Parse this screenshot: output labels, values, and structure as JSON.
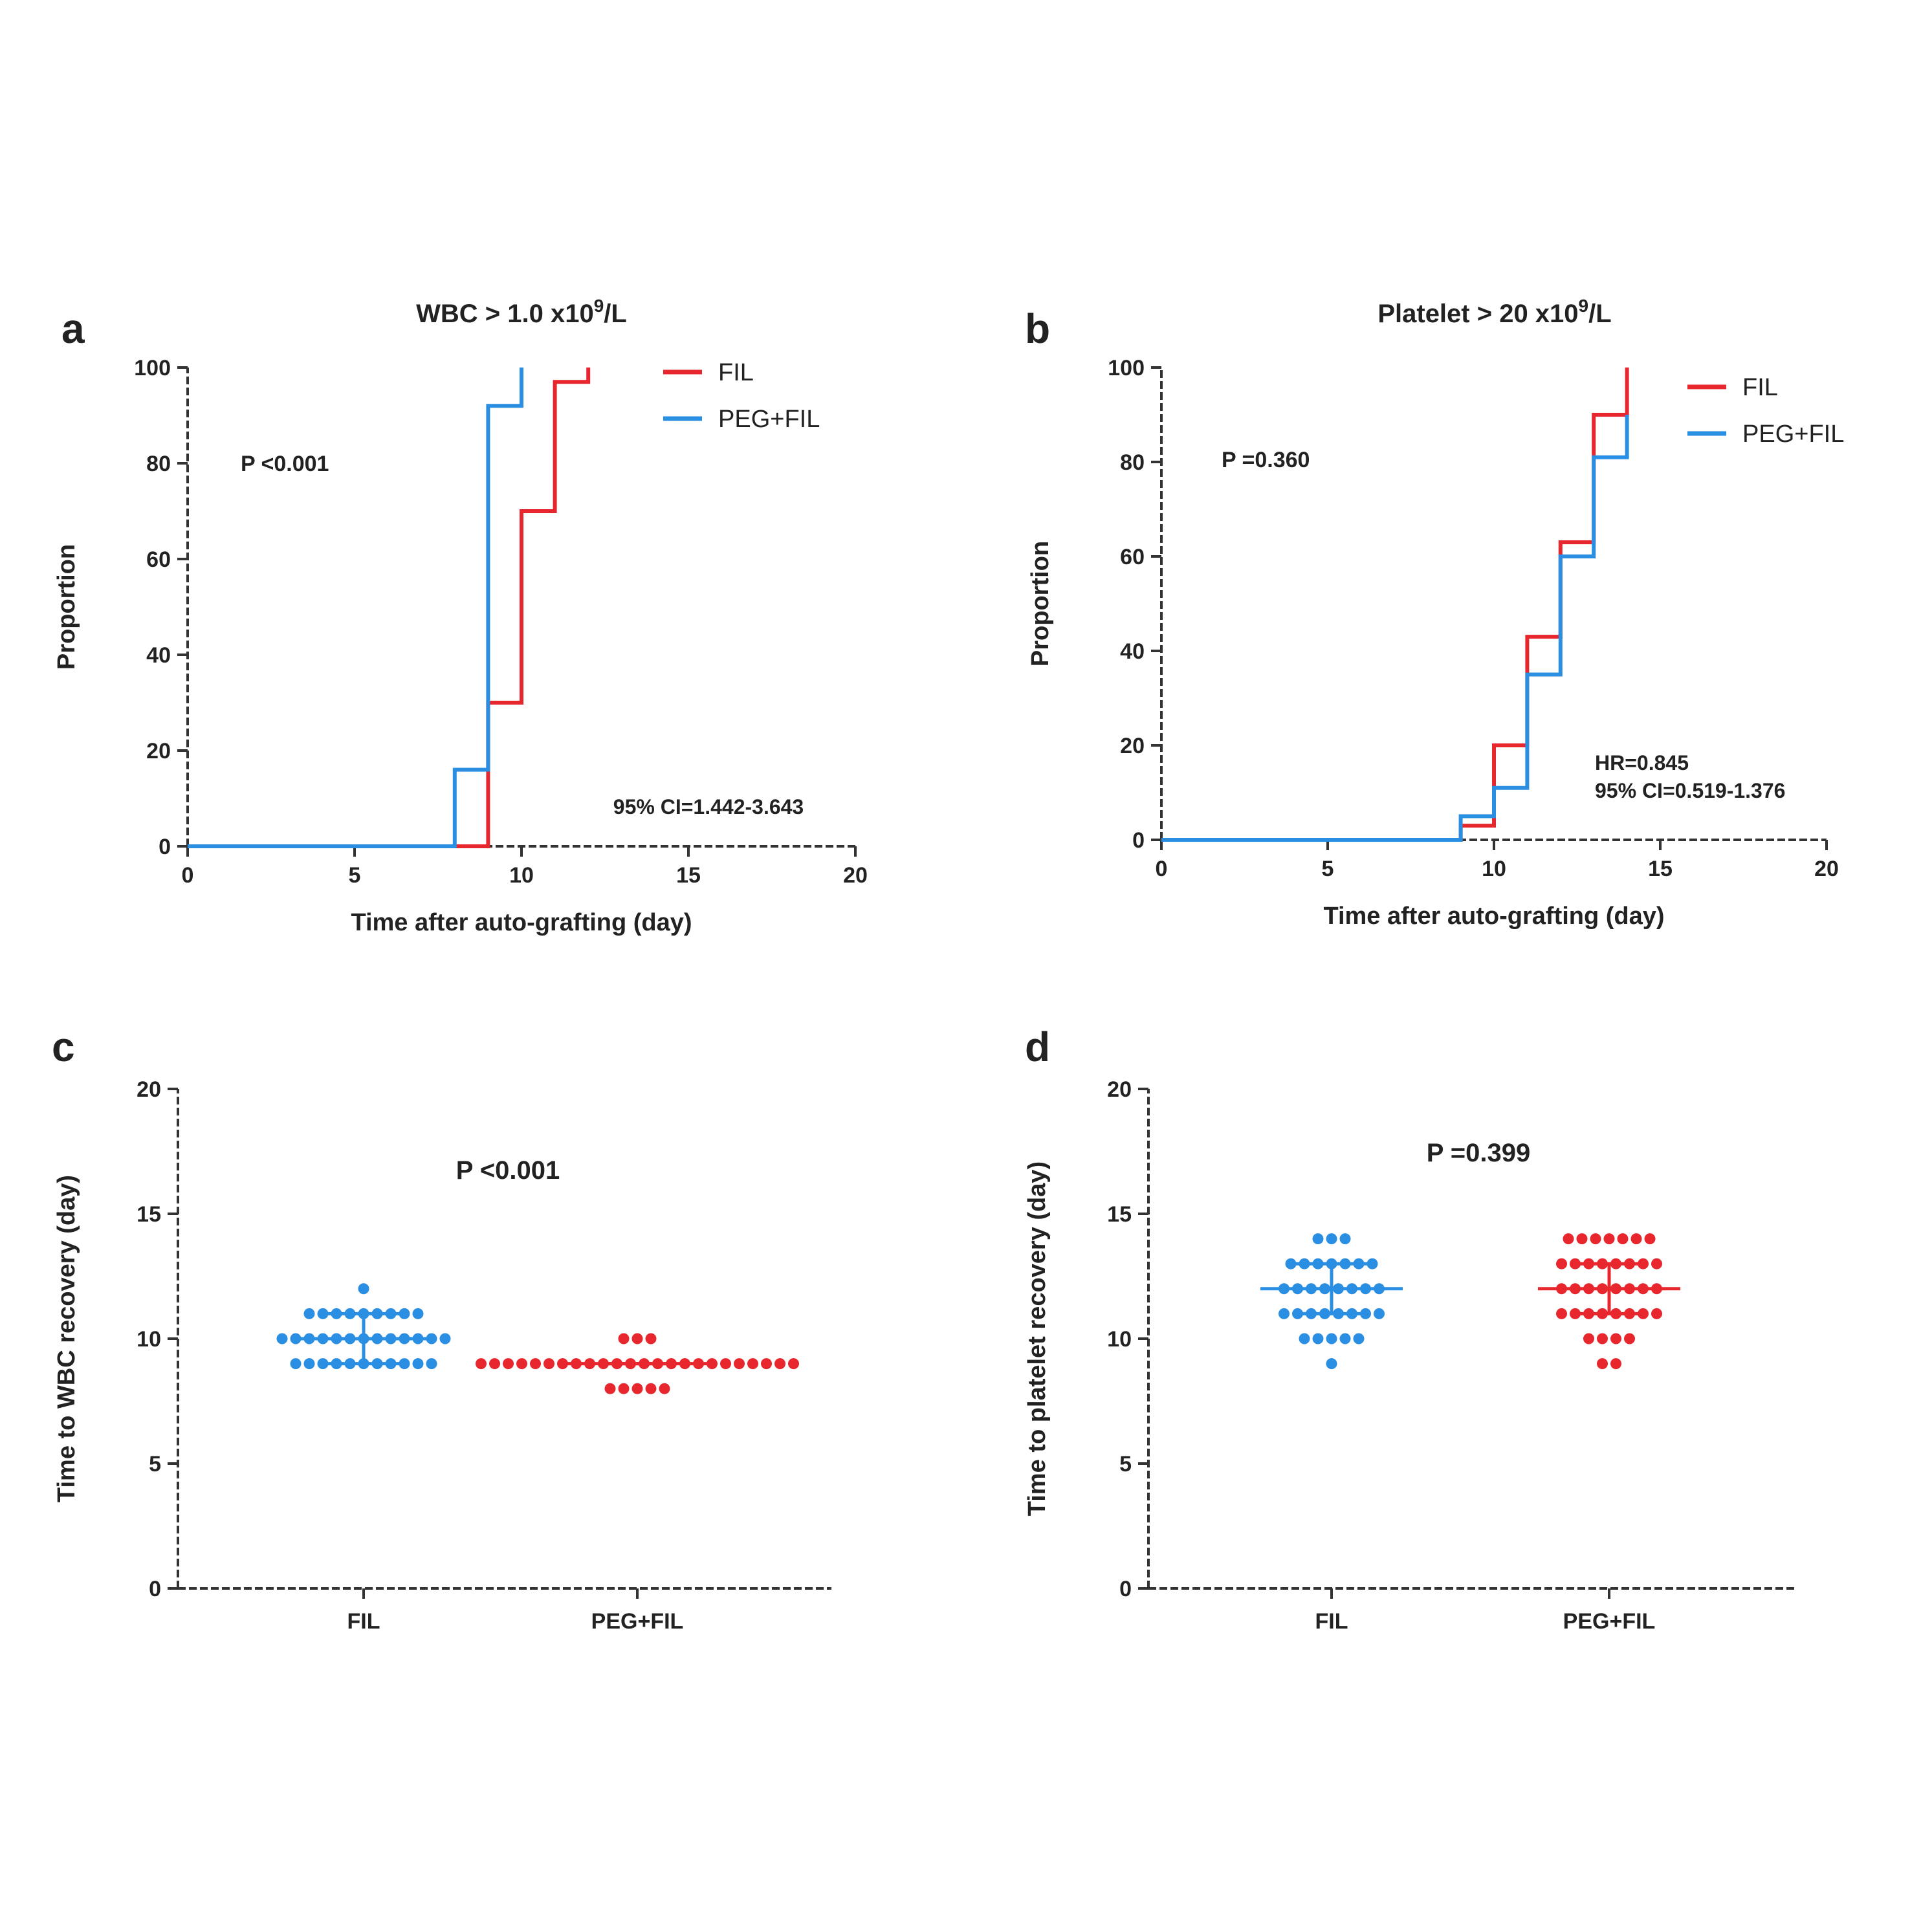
{
  "chart_data": [
    {
      "panel": "a",
      "type": "line",
      "step": true,
      "title": "WBC > 1.0 x10",
      "title_sup": "9",
      "title_tail": "/L",
      "xlabel": "Time after auto-grafting (day)",
      "ylabel": "Proportion",
      "xlim": [
        0,
        20
      ],
      "ylim": [
        0,
        100
      ],
      "xticks": [
        0,
        5,
        10,
        15,
        20
      ],
      "yticks": [
        0,
        20,
        40,
        60,
        80,
        100
      ],
      "legend": "top-right",
      "p_value": "P <0.001",
      "annotation": "95% CI=1.442-3.643",
      "series": [
        {
          "name": "FIL",
          "color": "#e8262d",
          "x": [
            0,
            9,
            9,
            10,
            10,
            11,
            11,
            12,
            12
          ],
          "y": [
            0,
            0,
            30,
            30,
            70,
            70,
            97,
            97,
            100
          ]
        },
        {
          "name": "PEG+FIL",
          "color": "#2a8ee2",
          "x": [
            0,
            8,
            8,
            9,
            9,
            10,
            10
          ],
          "y": [
            0,
            0,
            16,
            16,
            92,
            92,
            100
          ]
        }
      ]
    },
    {
      "panel": "b",
      "type": "line",
      "step": true,
      "title": "Platelet > 20 x10",
      "title_sup": "9",
      "title_tail": "/L",
      "xlabel": "Time after auto-grafting (day)",
      "ylabel": "Proportion",
      "xlim": [
        0,
        20
      ],
      "ylim": [
        0,
        100
      ],
      "xticks": [
        0,
        5,
        10,
        15,
        20
      ],
      "yticks": [
        0,
        20,
        40,
        60,
        80,
        100
      ],
      "legend": "top-right",
      "p_value": "P =0.360",
      "annotation_1": "HR=0.845",
      "annotation_2": "95% CI=0.519-1.376",
      "series": [
        {
          "name": "FIL",
          "color": "#e8262d",
          "x": [
            0,
            9,
            9,
            10,
            10,
            11,
            11,
            12,
            12,
            13,
            13,
            14,
            14
          ],
          "y": [
            0,
            0,
            3,
            3,
            20,
            20,
            43,
            43,
            63,
            63,
            90,
            90,
            100
          ]
        },
        {
          "name": "PEG+FIL",
          "color": "#2a8ee2",
          "x": [
            0,
            9,
            9,
            10,
            10,
            11,
            11,
            12,
            12,
            13,
            13,
            14,
            14
          ],
          "y": [
            0,
            0,
            5,
            5,
            11,
            11,
            35,
            35,
            60,
            60,
            81,
            81,
            90
          ]
        }
      ]
    },
    {
      "panel": "c",
      "type": "scatter",
      "title": "",
      "xlabel": "",
      "ylabel": "Time to WBC recovery (day)",
      "ylim": [
        0,
        20
      ],
      "yticks": [
        0,
        5,
        10,
        15,
        20
      ],
      "categories": [
        "FIL",
        "PEG+FIL"
      ],
      "p_value": "P <0.001",
      "series": [
        {
          "name": "FIL",
          "color": "#2a8ee2",
          "median": 10,
          "q1": 9,
          "q3": 11,
          "counts": {
            "9": 11,
            "10": 13,
            "11": 9,
            "12": 1
          }
        },
        {
          "name": "PEG+FIL",
          "color": "#e8262d",
          "median": 9,
          "q1": 9,
          "q3": 9,
          "counts": {
            "8": 5,
            "9": 24,
            "10": 3
          }
        }
      ]
    },
    {
      "panel": "d",
      "type": "scatter",
      "title": "",
      "xlabel": "",
      "ylabel": "Time to platelet recovery (day)",
      "ylim": [
        0,
        20
      ],
      "yticks": [
        0,
        5,
        10,
        15,
        20
      ],
      "categories": [
        "FIL",
        "PEG+FIL"
      ],
      "p_value": "P =0.399",
      "series": [
        {
          "name": "FIL",
          "color": "#2a8ee2",
          "median": 12,
          "q1": 11,
          "q3": 13,
          "counts": {
            "9": 1,
            "10": 5,
            "11": 8,
            "12": 8,
            "13": 7,
            "14": 3
          }
        },
        {
          "name": "PEG+FIL",
          "color": "#e8262d",
          "median": 12,
          "q1": 11,
          "q3": 13,
          "counts": {
            "9": 2,
            "10": 4,
            "11": 8,
            "12": 8,
            "13": 8,
            "14": 7
          }
        }
      ]
    }
  ]
}
